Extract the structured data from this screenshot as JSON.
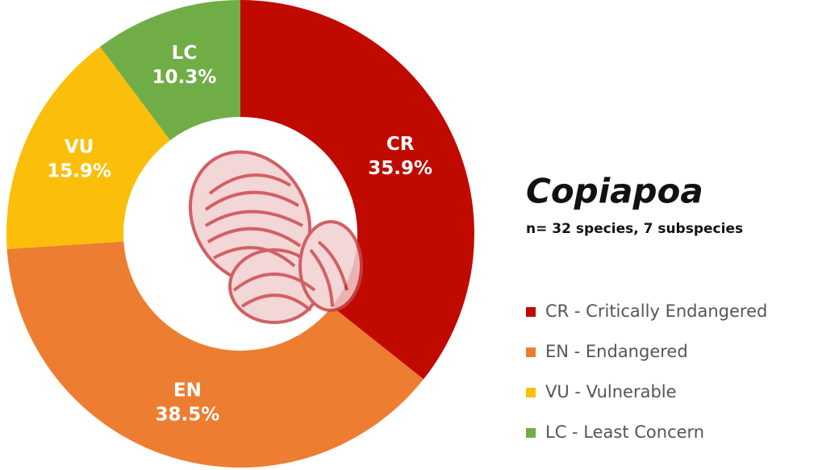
{
  "chart_data": {
    "type": "donut",
    "title": "Copiapoa",
    "subtitle": "n= 32 species, 7 subspecies",
    "categories": [
      "CR",
      "EN",
      "VU",
      "LC"
    ],
    "values": [
      35.9,
      38.5,
      15.9,
      10.3
    ],
    "value_labels": [
      "35.9%",
      "38.5%",
      "15.9%",
      "10.3%"
    ],
    "legend_labels": [
      "CR - Critically Endangered",
      "EN - Endangered",
      "VU - Vulnerable",
      "LC - Least Concern"
    ],
    "colors": [
      "#c00a00",
      "#ed7d31",
      "#fbbf0b",
      "#70ad47"
    ]
  }
}
